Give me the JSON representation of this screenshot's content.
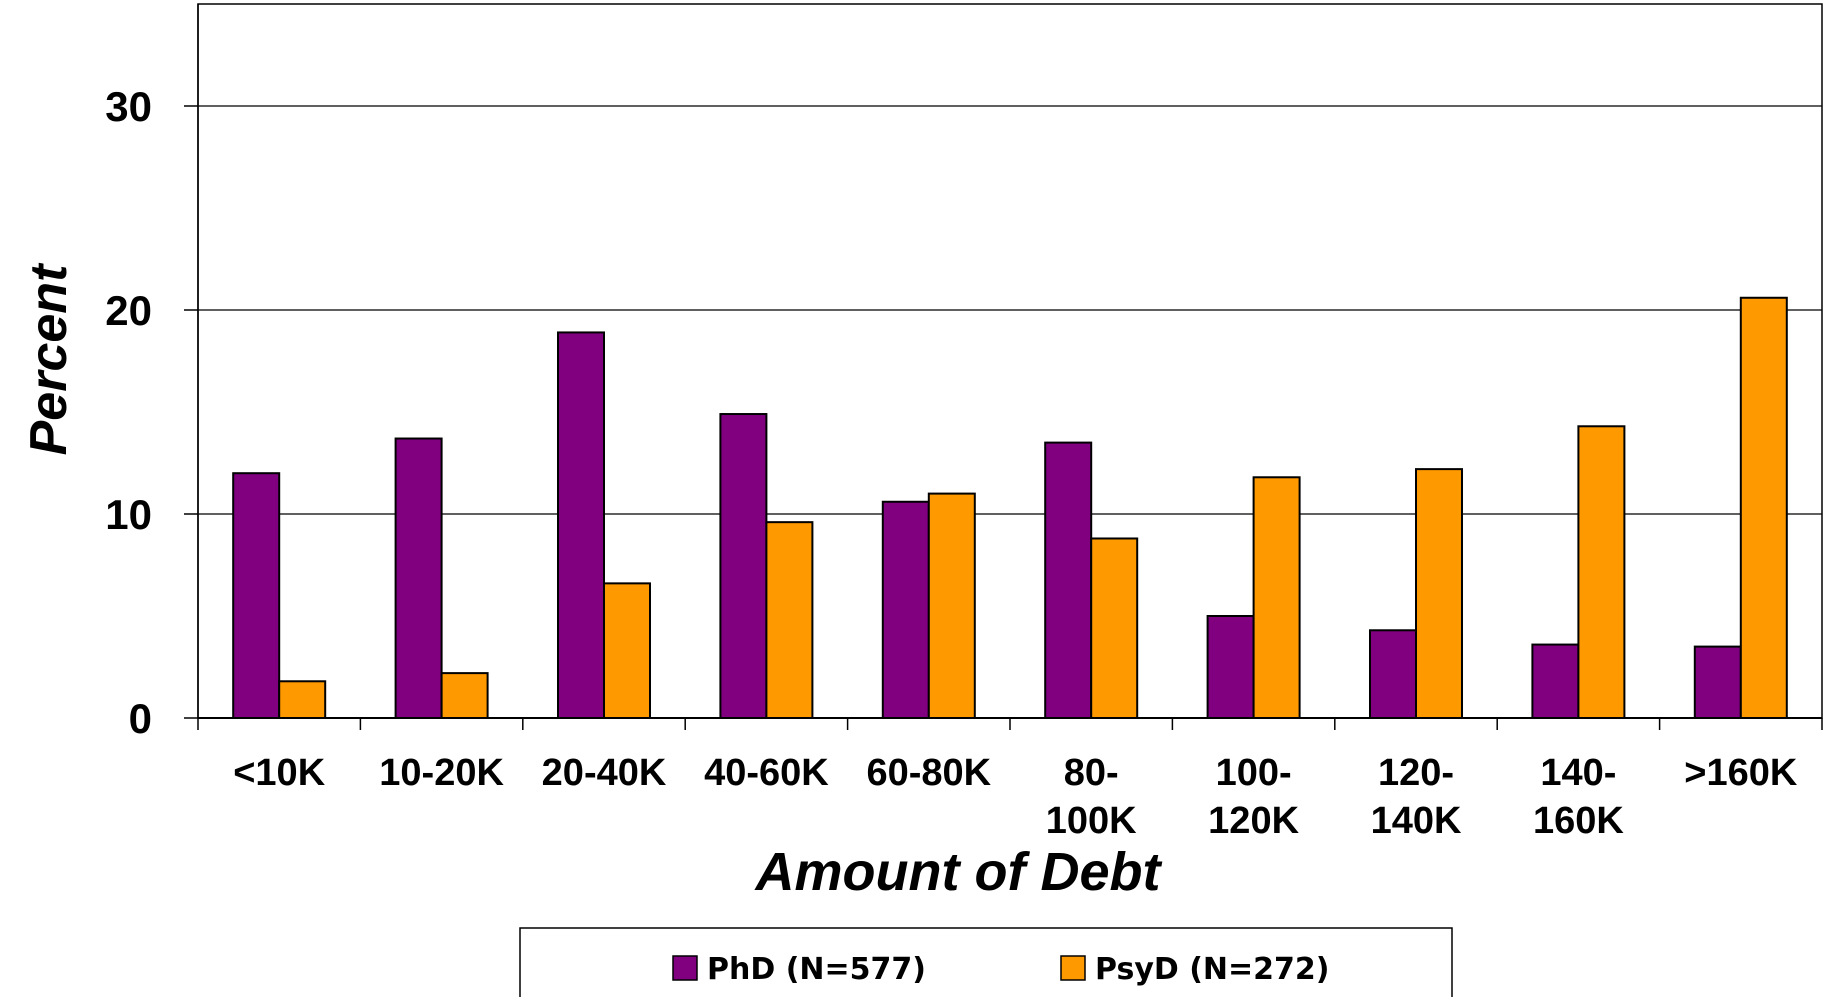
{
  "chart_data": {
    "type": "bar",
    "title": "",
    "xlabel": "Amount of Debt",
    "ylabel": "Percent",
    "ylim": [
      0,
      35
    ],
    "yticks": [
      "0",
      "10",
      "20",
      "30"
    ],
    "grid": true,
    "legend_position": "bottom",
    "categories": [
      [
        "<10K"
      ],
      [
        "10-20K"
      ],
      [
        "20-40K"
      ],
      [
        "40-60K"
      ],
      [
        "60-80K"
      ],
      [
        "80-",
        "100K"
      ],
      [
        "100-",
        "120K"
      ],
      [
        "120-",
        "140K"
      ],
      [
        "140-",
        "160K"
      ],
      [
        ">160K"
      ]
    ],
    "series": [
      {
        "name": "PhD (N=577)",
        "color": "#800080",
        "values": [
          12.0,
          13.7,
          18.9,
          14.9,
          10.6,
          13.5,
          5.0,
          4.3,
          3.6,
          3.5
        ]
      },
      {
        "name": "PsyD (N=272)",
        "color": "#FF9900",
        "values": [
          1.8,
          2.2,
          6.6,
          9.6,
          11.0,
          8.8,
          11.8,
          12.2,
          14.3,
          20.6
        ]
      }
    ]
  }
}
